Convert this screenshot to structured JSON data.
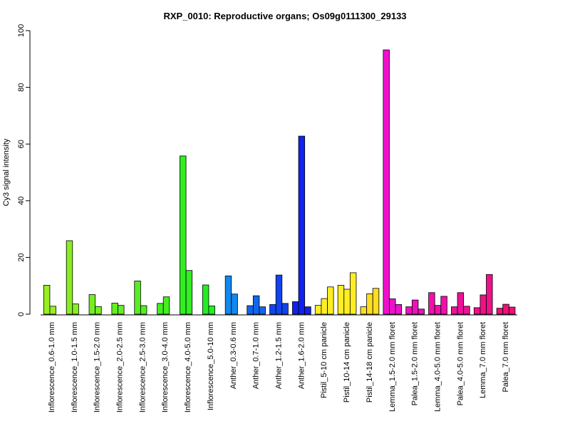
{
  "chart_data": {
    "type": "bar",
    "title": "RXP_0010: Reproductive organs; Os09g0111300_29133",
    "ylabel": "Cy3 signal intensity",
    "xlabel": "",
    "ylim": [
      0,
      100
    ],
    "yticks": [
      0,
      20,
      40,
      60,
      80,
      100
    ],
    "grid": false,
    "legend": "none",
    "categories": [
      "Inflorescence_0.6-1.0 mm",
      "Inflorescence_1.0-1.5 mm",
      "Inflorescence_1.5-2.0 mm",
      "Inflorescence_2.0-2.5 mm",
      "Inflorescence_2.5-3.0 mm",
      "Inflorescence_3.0-4.0 mm",
      "Inflorescence_4.0-5.0 mm",
      "Inflorescence_5.0-10 mm",
      "Anther_0.3-0.6 mm",
      "Anther_0.7-1.0 mm",
      "Anther_1.2-1.5 mm",
      "Anther_1.6-2.0 mm",
      "Pistil_5-10 cm panicle",
      "Pistil_10-14 cm panicle",
      "Pistil_14-18 cm panicle",
      "Lemma_1.5-2.0 mm floret",
      "Palea_1.5-2.0 mm floret",
      "Lemma_4.0-5.0 mm floret",
      "Palea_4.0-5.0 mm floret",
      "Lemma_7.0 mm floret",
      "Palea_7.0 mm floret"
    ],
    "groups": [
      {
        "color": "#99ee22",
        "values": [
          10.2,
          2.8
        ]
      },
      {
        "color": "#88ee22",
        "values": [
          25.9,
          3.6
        ]
      },
      {
        "color": "#77ee22",
        "values": [
          6.9,
          2.7
        ]
      },
      {
        "color": "#66ee22",
        "values": [
          3.9,
          3.1
        ]
      },
      {
        "color": "#55ee22",
        "values": [
          11.7,
          3.0
        ]
      },
      {
        "color": "#44ee22",
        "values": [
          3.8,
          6.1
        ]
      },
      {
        "color": "#33ee22",
        "values": [
          55.8,
          15.4
        ]
      },
      {
        "color": "#22ee22",
        "values": [
          10.3,
          2.9
        ]
      },
      {
        "color": "#1188ee",
        "values": [
          13.5,
          7.1
        ]
      },
      {
        "color": "#1166ee",
        "values": [
          3.0,
          6.5,
          2.6
        ]
      },
      {
        "color": "#1144ee",
        "values": [
          3.4,
          13.8,
          3.8
        ]
      },
      {
        "color": "#1122ee",
        "values": [
          4.4,
          62.8,
          2.6
        ]
      },
      {
        "color": "#ffee22",
        "values": [
          3.1,
          5.5,
          9.6
        ]
      },
      {
        "color": "#ffee22",
        "values": [
          10.2,
          8.8,
          14.6
        ]
      },
      {
        "color": "#ffdd22",
        "values": [
          2.6,
          7.2,
          9.1
        ]
      },
      {
        "color": "#ee11cc",
        "values": [
          93.2,
          5.4,
          3.4
        ]
      },
      {
        "color": "#ee11bb",
        "values": [
          2.6,
          5.0,
          1.8
        ]
      },
      {
        "color": "#ee11aa",
        "values": [
          7.6,
          3.1,
          6.3
        ]
      },
      {
        "color": "#ee1199",
        "values": [
          2.6,
          7.6,
          2.8
        ]
      },
      {
        "color": "#ee1188",
        "values": [
          2.3,
          6.8,
          14.0
        ]
      },
      {
        "color": "#ee1177",
        "values": [
          2.1,
          3.5,
          2.5
        ]
      }
    ]
  }
}
